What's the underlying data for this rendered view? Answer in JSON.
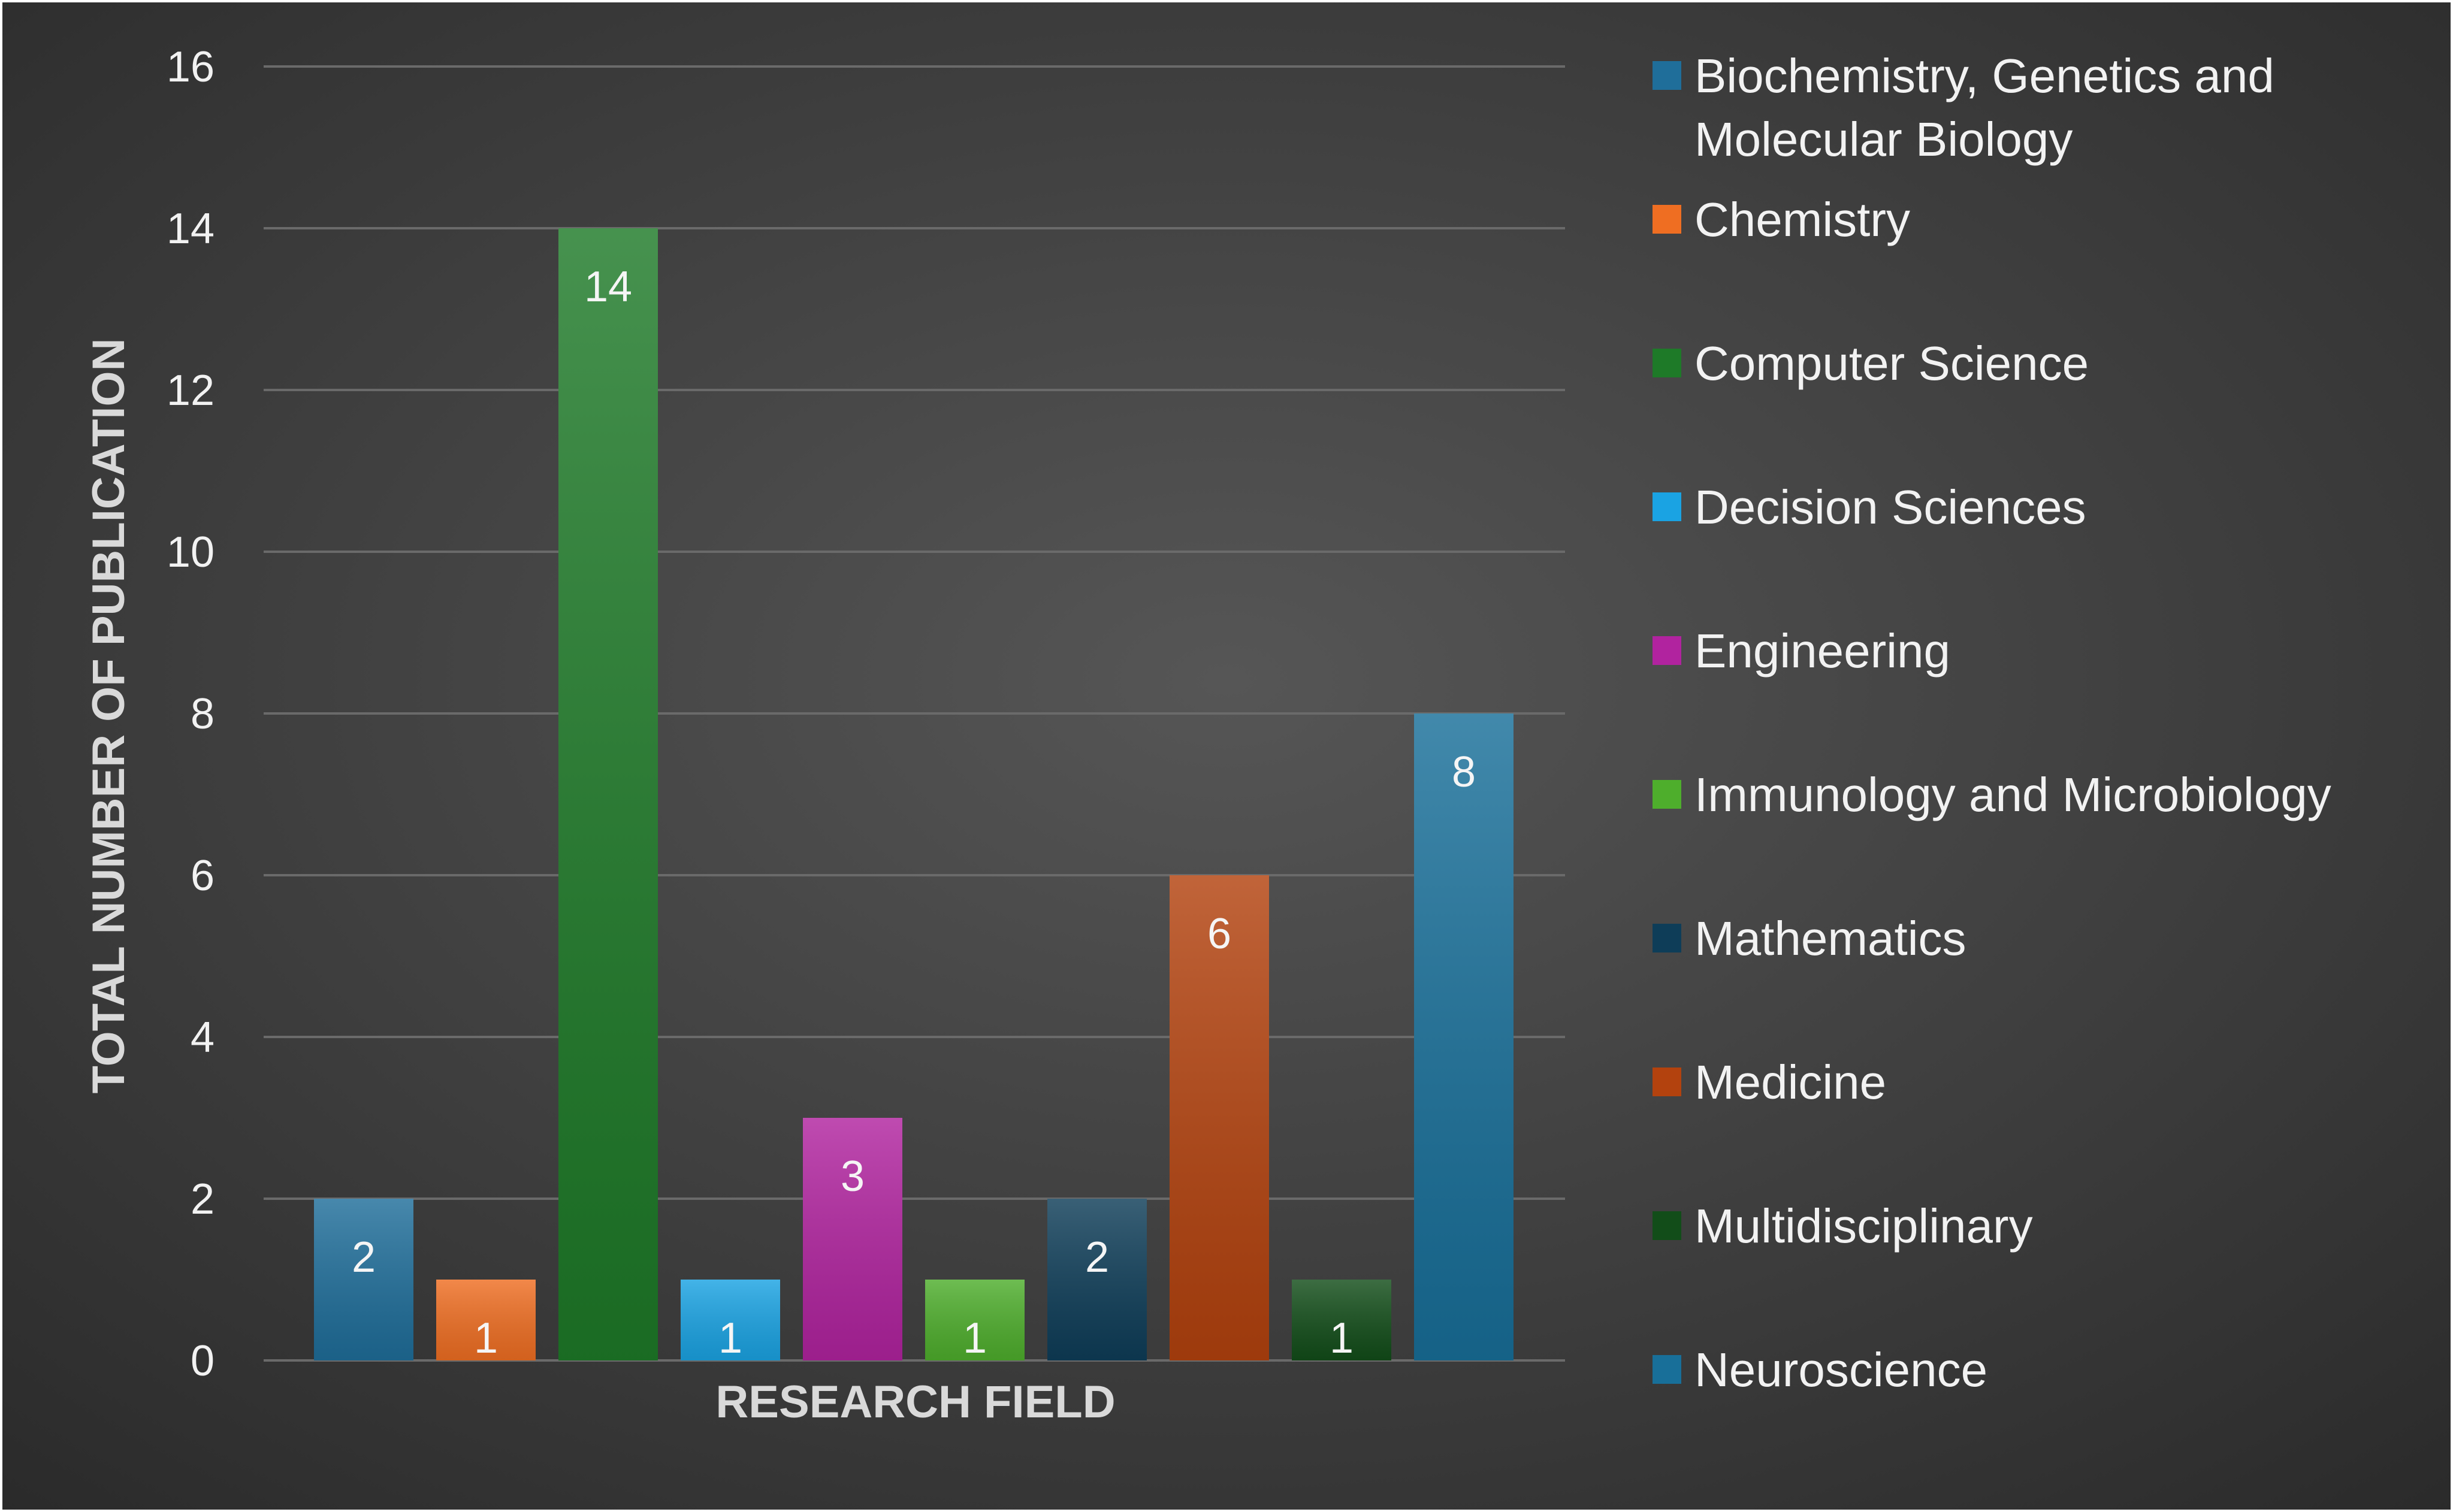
{
  "chart_data": {
    "type": "bar",
    "title": "",
    "xlabel": "RESEARCH FIELD",
    "ylabel": "TOTAL NUMBER OF PUBLICATION",
    "ylim": [
      0,
      16
    ],
    "yticks": [
      "0",
      "2",
      "4",
      "6",
      "8",
      "10",
      "12",
      "14",
      "16"
    ],
    "grid": true,
    "legend_position": "right",
    "series": [
      {
        "name": "Biochemistry, Genetics and Molecular Biology",
        "values": [
          2
        ],
        "color": "#1f6e9a"
      },
      {
        "name": "Chemistry",
        "values": [
          1
        ],
        "color": "#ef6e22"
      },
      {
        "name": "Computer Science",
        "values": [
          14
        ],
        "color": "#1e7a28"
      },
      {
        "name": "Decision Sciences",
        "values": [
          1
        ],
        "color": "#1aa3e3"
      },
      {
        "name": "Engineering",
        "values": [
          3
        ],
        "color": "#b1239f"
      },
      {
        "name": "Immunology and Microbiology",
        "values": [
          1
        ],
        "color": "#4eae2c"
      },
      {
        "name": "Mathematics",
        "values": [
          2
        ],
        "color": "#0e3d58"
      },
      {
        "name": "Medicine",
        "values": [
          6
        ],
        "color": "#b3420e"
      },
      {
        "name": "Multidisciplinary",
        "values": [
          1
        ],
        "color": "#124d19"
      },
      {
        "name": "Neuroscience",
        "values": [
          8
        ],
        "color": "#186f99"
      }
    ],
    "data_labels": [
      "2",
      "1",
      "14",
      "1",
      "3",
      "1",
      "2",
      "6",
      "1",
      "8"
    ]
  },
  "legend_lines": [
    [
      "Biochemistry, Genetics and",
      "Molecular Biology"
    ],
    [
      "Chemistry"
    ],
    [
      "Computer Science"
    ],
    [
      "Decision Sciences"
    ],
    [
      "Engineering"
    ],
    [
      "Immunology and Microbiology"
    ],
    [
      "Mathematics"
    ],
    [
      "Medicine"
    ],
    [
      "Multidisciplinary"
    ],
    [
      "Neuroscience"
    ]
  ],
  "colors": {
    "background_center": "#555555",
    "background_edge": "#2b2b2b",
    "gridline": "#6a6a6a"
  }
}
